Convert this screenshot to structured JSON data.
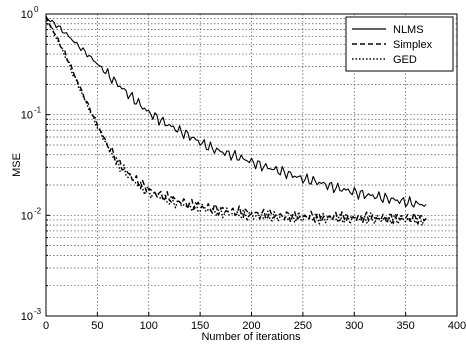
{
  "chart_data": {
    "type": "line",
    "title": "",
    "xlabel": "Number of iterations",
    "ylabel": "MSE",
    "xlim": [
      0,
      400
    ],
    "ylim": [
      0.001,
      1
    ],
    "yscale": "log",
    "grid": true,
    "legend_position": "top-right",
    "x_ticks": [
      {
        "value": 0,
        "label": "0"
      },
      {
        "value": 50,
        "label": "50"
      },
      {
        "value": 100,
        "label": "100"
      },
      {
        "value": 150,
        "label": "150"
      },
      {
        "value": 200,
        "label": "200"
      },
      {
        "value": 250,
        "label": "250"
      },
      {
        "value": 300,
        "label": "300"
      },
      {
        "value": 350,
        "label": "350"
      },
      {
        "value": 400,
        "label": "400"
      }
    ],
    "y_ticks": [
      {
        "value": 1,
        "base": "10",
        "exp": "0"
      },
      {
        "value": 0.1,
        "base": "10",
        "exp": "-1"
      },
      {
        "value": 0.01,
        "base": "10",
        "exp": "-2"
      },
      {
        "value": 0.001,
        "base": "10",
        "exp": "-3"
      }
    ],
    "series": [
      {
        "name": "NLMS",
        "style": "solid",
        "x": [
          0,
          10,
          20,
          30,
          40,
          50,
          60,
          70,
          80,
          90,
          100,
          110,
          120,
          130,
          140,
          150,
          160,
          170,
          180,
          190,
          200,
          210,
          220,
          230,
          240,
          250,
          260,
          270,
          280,
          290,
          300,
          310,
          320,
          330,
          340,
          350,
          360,
          370
        ],
        "y": [
          0.92,
          0.78,
          0.63,
          0.5,
          0.4,
          0.32,
          0.25,
          0.2,
          0.16,
          0.13,
          0.105,
          0.09,
          0.078,
          0.069,
          0.061,
          0.053,
          0.047,
          0.043,
          0.04,
          0.037,
          0.034,
          0.031,
          0.029,
          0.027,
          0.025,
          0.023,
          0.022,
          0.0205,
          0.019,
          0.018,
          0.017,
          0.016,
          0.0155,
          0.0148,
          0.0142,
          0.0136,
          0.013,
          0.0128
        ]
      },
      {
        "name": "Simplex",
        "style": "dashed",
        "x": [
          0,
          10,
          20,
          30,
          40,
          50,
          60,
          70,
          80,
          90,
          100,
          110,
          120,
          130,
          140,
          150,
          160,
          170,
          180,
          190,
          200,
          210,
          220,
          230,
          240,
          250,
          260,
          270,
          280,
          290,
          300,
          310,
          320,
          330,
          340,
          350,
          360,
          370
        ],
        "y": [
          0.92,
          0.6,
          0.38,
          0.22,
          0.13,
          0.08,
          0.05,
          0.034,
          0.026,
          0.021,
          0.018,
          0.016,
          0.0148,
          0.0138,
          0.013,
          0.0124,
          0.0118,
          0.0113,
          0.011,
          0.0107,
          0.0104,
          0.0102,
          0.01,
          0.0099,
          0.0098,
          0.0097,
          0.0097,
          0.0096,
          0.0096,
          0.0095,
          0.0095,
          0.0095,
          0.0094,
          0.0094,
          0.0094,
          0.0094,
          0.0093,
          0.0093
        ]
      },
      {
        "name": "GED",
        "style": "dotted",
        "x": [
          0,
          10,
          20,
          30,
          40,
          50,
          60,
          70,
          80,
          90,
          100,
          110,
          120,
          130,
          140,
          150,
          160,
          170,
          180,
          190,
          200,
          210,
          220,
          230,
          240,
          250,
          260,
          270,
          280,
          290,
          300,
          310,
          320,
          330,
          340,
          350,
          360,
          370
        ],
        "y": [
          0.92,
          0.58,
          0.36,
          0.21,
          0.125,
          0.076,
          0.048,
          0.033,
          0.025,
          0.02,
          0.017,
          0.0153,
          0.014,
          0.013,
          0.0123,
          0.0117,
          0.0112,
          0.0108,
          0.0105,
          0.0102,
          0.01,
          0.0098,
          0.0097,
          0.0096,
          0.0095,
          0.0095,
          0.0094,
          0.0094,
          0.0093,
          0.0093,
          0.0093,
          0.0092,
          0.0092,
          0.0092,
          0.0092,
          0.0091,
          0.0091,
          0.0091
        ]
      }
    ]
  }
}
